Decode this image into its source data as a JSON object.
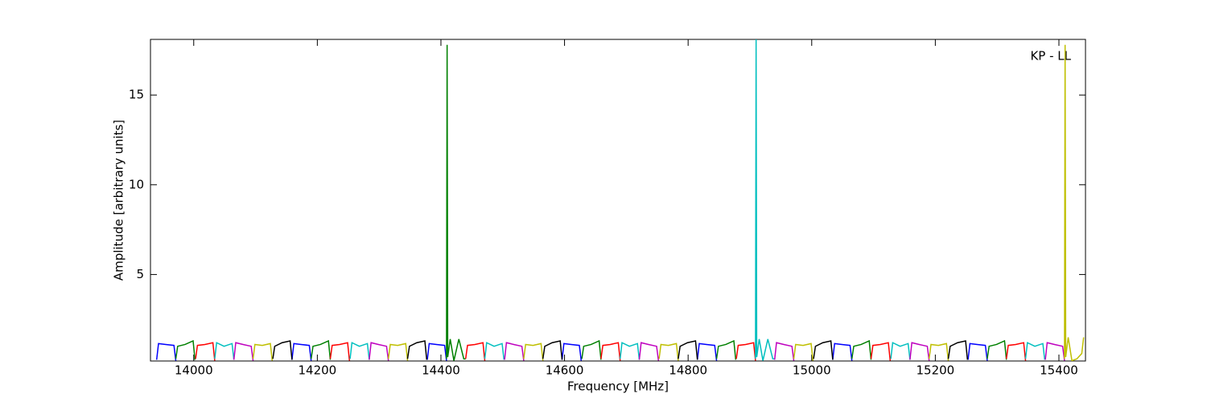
{
  "chart_data": {
    "type": "line",
    "xlabel": "Frequency [MHz]",
    "ylabel": "Amplitude [arbitrary units]",
    "annotation": "KP - LL",
    "xlim": [
      13930,
      15443
    ],
    "ylim": [
      0.18,
      18.1
    ],
    "xticks": [
      14000,
      14200,
      14400,
      14600,
      14800,
      15000,
      15200,
      15400
    ],
    "yticks": [
      5,
      10,
      15
    ],
    "grid": false,
    "series": [
      {
        "color": "#0000ff",
        "x": [
          13940,
          13943,
          13955,
          13968,
          13971,
          null,
          14159,
          14162,
          14174,
          14187,
          14190,
          null,
          14378,
          14381,
          14393,
          14406,
          14409,
          null,
          14596,
          14599,
          14611,
          14624,
          14627,
          null,
          14815,
          14818,
          14830,
          14843,
          14846,
          null,
          15034,
          15037,
          15049,
          15062,
          15065,
          null,
          15253,
          15256,
          15268,
          15281,
          15284
        ],
        "values": [
          0.25,
          1.15,
          1.1,
          1.05,
          0.2,
          null,
          0.25,
          1.15,
          1.1,
          1.05,
          0.2,
          null,
          0.25,
          1.15,
          1.1,
          1.05,
          0.2,
          null,
          0.25,
          1.15,
          1.1,
          1.05,
          0.2,
          null,
          0.25,
          1.15,
          1.1,
          1.05,
          0.2,
          null,
          0.25,
          1.15,
          1.1,
          1.05,
          0.2,
          null,
          0.25,
          1.15,
          1.1,
          1.05,
          0.2
        ]
      },
      {
        "color": "#008000",
        "x": [
          13971,
          13974,
          13986,
          13999,
          14002,
          null,
          14190,
          14193,
          14205,
          14218,
          14221,
          null,
          14409,
          14410,
          14411,
          14415,
          14421,
          14429,
          14437,
          14440,
          null,
          14628,
          14631,
          14643,
          14656,
          14659,
          null,
          14846,
          14849,
          14861,
          14874,
          14877,
          null,
          15065,
          15068,
          15080,
          15093,
          15096,
          null,
          15284,
          15287,
          15299,
          15312,
          15315
        ],
        "values": [
          0.3,
          1.0,
          1.1,
          1.3,
          0.25,
          null,
          0.3,
          1.0,
          1.1,
          1.3,
          0.25,
          null,
          0.3,
          17.8,
          0.4,
          1.4,
          0.2,
          1.4,
          0.3,
          0.3,
          null,
          0.3,
          1.0,
          1.1,
          1.3,
          0.25,
          null,
          0.3,
          1.0,
          1.1,
          1.3,
          0.25,
          null,
          0.3,
          1.0,
          1.1,
          1.3,
          0.25,
          null,
          0.3,
          1.0,
          1.1,
          1.3,
          0.25
        ]
      },
      {
        "color": "#ff0000",
        "x": [
          14003,
          14006,
          14018,
          14031,
          14034,
          null,
          14221,
          14224,
          14236,
          14249,
          14252,
          null,
          14440,
          14443,
          14455,
          14468,
          14471,
          null,
          14659,
          14662,
          14674,
          14687,
          14690,
          null,
          14878,
          14881,
          14893,
          14906,
          14909,
          null,
          15096,
          15099,
          15111,
          15124,
          15127,
          null,
          15315,
          15318,
          15330,
          15343,
          15346
        ],
        "values": [
          0.3,
          1.05,
          1.1,
          1.2,
          0.2,
          null,
          0.3,
          1.05,
          1.1,
          1.2,
          0.2,
          null,
          0.3,
          1.05,
          1.1,
          1.2,
          0.2,
          null,
          0.3,
          1.05,
          1.1,
          1.2,
          0.2,
          null,
          0.3,
          1.05,
          1.1,
          1.2,
          0.2,
          null,
          0.3,
          1.05,
          1.1,
          1.2,
          0.2,
          null,
          0.3,
          1.05,
          1.1,
          1.2,
          0.2
        ]
      },
      {
        "color": "#00bfbf",
        "x": [
          14034,
          14037,
          14049,
          14062,
          14065,
          null,
          14253,
          14256,
          14268,
          14281,
          14284,
          null,
          14471,
          14474,
          14486,
          14499,
          14502,
          null,
          14690,
          14693,
          14705,
          14718,
          14721,
          null,
          14909,
          14910,
          14911,
          14915,
          14921,
          14929,
          14937,
          14940,
          null,
          15128,
          15131,
          15143,
          15156,
          15159,
          null,
          15346,
          15349,
          15361,
          15374,
          15377
        ],
        "values": [
          0.3,
          1.2,
          1.0,
          1.15,
          0.25,
          null,
          0.3,
          1.2,
          1.0,
          1.15,
          0.25,
          null,
          0.3,
          1.2,
          1.0,
          1.15,
          0.25,
          null,
          0.3,
          1.2,
          1.0,
          1.15,
          0.25,
          null,
          0.3,
          18.1,
          0.4,
          1.4,
          0.2,
          1.4,
          0.3,
          0.3,
          null,
          0.3,
          1.2,
          1.0,
          1.15,
          0.25,
          null,
          0.3,
          1.2,
          1.0,
          1.15,
          0.25
        ]
      },
      {
        "color": "#bf00bf",
        "x": [
          14065,
          14068,
          14080,
          14093,
          14096,
          null,
          14284,
          14287,
          14299,
          14312,
          14315,
          null,
          14503,
          14506,
          14518,
          14531,
          14534,
          null,
          14721,
          14724,
          14736,
          14749,
          14752,
          null,
          14940,
          14943,
          14955,
          14968,
          14971,
          null,
          15159,
          15162,
          15174,
          15187,
          15190,
          null,
          15378,
          15381,
          15393,
          15406,
          15409
        ],
        "values": [
          0.25,
          1.2,
          1.1,
          1.0,
          0.2,
          null,
          0.25,
          1.2,
          1.1,
          1.0,
          0.2,
          null,
          0.25,
          1.2,
          1.1,
          1.0,
          0.2,
          null,
          0.25,
          1.2,
          1.1,
          1.0,
          0.2,
          null,
          0.25,
          1.2,
          1.1,
          1.0,
          0.2,
          null,
          0.25,
          1.2,
          1.1,
          1.0,
          0.2,
          null,
          0.25,
          1.2,
          1.1,
          1.0,
          0.2
        ]
      },
      {
        "color": "#bfbf00",
        "x": [
          14096,
          14099,
          14111,
          14124,
          14127,
          null,
          14315,
          14318,
          14330,
          14343,
          14346,
          null,
          14534,
          14537,
          14549,
          14562,
          14565,
          null,
          14753,
          14756,
          14768,
          14781,
          14784,
          null,
          14971,
          14974,
          14986,
          14999,
          15002,
          null,
          15190,
          15193,
          15205,
          15218,
          15221,
          null,
          15409,
          15410,
          15411,
          15415,
          15421,
          15429,
          15437,
          15440
        ],
        "values": [
          0.3,
          1.1,
          1.05,
          1.15,
          0.2,
          null,
          0.3,
          1.1,
          1.05,
          1.15,
          0.2,
          null,
          0.3,
          1.1,
          1.05,
          1.15,
          0.2,
          null,
          0.3,
          1.1,
          1.05,
          1.15,
          0.2,
          null,
          0.3,
          1.1,
          1.05,
          1.15,
          0.2,
          null,
          0.3,
          1.1,
          1.05,
          1.15,
          0.2,
          null,
          0.3,
          17.8,
          0.4,
          1.5,
          0.2,
          0.3,
          0.6,
          1.5
        ]
      },
      {
        "color": "#000000",
        "x": [
          14128,
          14131,
          14143,
          14156,
          14159,
          null,
          14346,
          14349,
          14361,
          14374,
          14377,
          null,
          14565,
          14568,
          14580,
          14593,
          14596,
          null,
          14784,
          14787,
          14799,
          14812,
          14815,
          null,
          15003,
          15006,
          15018,
          15031,
          15034,
          null,
          15221,
          15224,
          15236,
          15249,
          15252
        ],
        "values": [
          0.3,
          1.0,
          1.2,
          1.3,
          0.25,
          null,
          0.3,
          1.0,
          1.2,
          1.3,
          0.25,
          null,
          0.3,
          1.0,
          1.2,
          1.3,
          0.25,
          null,
          0.3,
          1.0,
          1.2,
          1.3,
          0.25,
          null,
          0.3,
          1.0,
          1.2,
          1.3,
          0.25,
          null,
          0.3,
          1.0,
          1.2,
          1.3,
          0.25
        ]
      }
    ]
  }
}
